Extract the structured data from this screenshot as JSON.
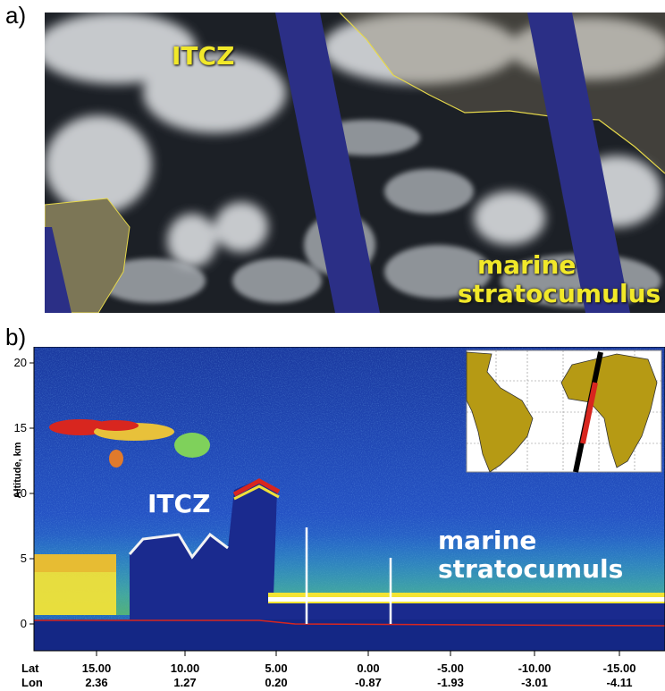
{
  "panel_a": {
    "label": "a)",
    "annotations": {
      "itcz": "ITCZ",
      "marine_line1": "marine",
      "marine_line2": "stratocumulus"
    }
  },
  "panel_b": {
    "label": "b)",
    "annotations": {
      "itcz": "ITCZ",
      "marine_line1": "marine",
      "marine_line2": "stratocumuls"
    },
    "y_axis_label": "Altitude, km",
    "y_ticks": [
      "20",
      "15",
      "10",
      "5",
      "0"
    ],
    "row_labels": {
      "lat": "Lat",
      "lon": "Lon"
    },
    "x_ticks": [
      {
        "lat": "15.00",
        "lon": "2.36"
      },
      {
        "lat": "10.00",
        "lon": "1.27"
      },
      {
        "lat": "5.00",
        "lon": "0.20"
      },
      {
        "lat": "0.00",
        "lon": "-0.87"
      },
      {
        "lat": "-5.00",
        "lon": "-1.93"
      },
      {
        "lat": "-10.00",
        "lon": "-3.01"
      },
      {
        "lat": "-15.00",
        "lon": "-4.11"
      }
    ]
  },
  "colors": {
    "satellite_gap": "#2b2f86",
    "lidar_background": "#1f3fa8",
    "cloud_red": "#d8261f",
    "cloud_yellow": "#f3e433",
    "label_yellow": "#f1e829"
  }
}
